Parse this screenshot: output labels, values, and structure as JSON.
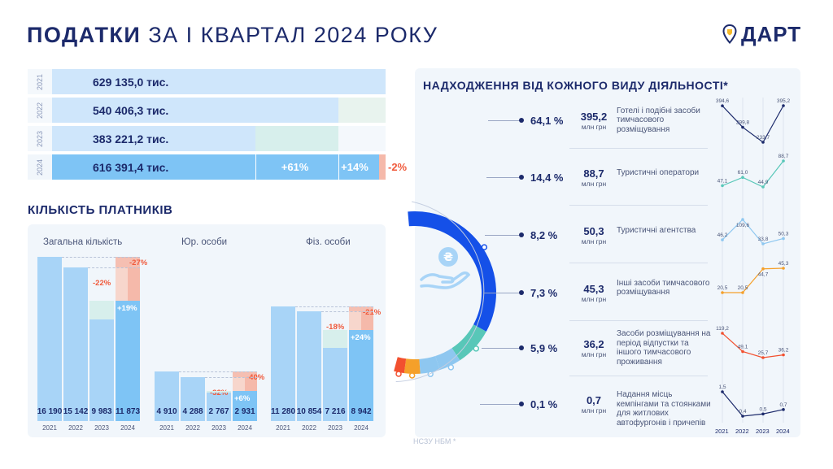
{
  "header": {
    "title_bold": "ПОДАТКИ",
    "title_rest": " ЗА І КВАРТАЛ 2024 РОКУ",
    "logo_text": "ДАРТ",
    "logo_icon": "map-pin-shield-icon"
  },
  "colors": {
    "navy": "#1c2a6b",
    "light_blue": "#a8d4f7",
    "mid_blue": "#7ec4f5",
    "pale_blue": "#cfe6fb",
    "mint": "#d7efec",
    "red": "#f05a3c",
    "light_red": "#f5b9aa",
    "ring_blue": "#1550e8",
    "ring_teal": "#58c7b8",
    "ring_sky": "#8ec7f0",
    "ring_orange": "#f5a02a",
    "ring_red": "#f2502f"
  },
  "revenue": {
    "rows": [
      {
        "year": "2021",
        "value": "629 135,0  тис.",
        "amount": 629135.0
      },
      {
        "year": "2022",
        "value": "540 406,3  тис.",
        "amount": 540406.3
      },
      {
        "year": "2023",
        "value": "383 221,2  тис.",
        "amount": 383221.2
      },
      {
        "year": "2024",
        "value": "616 391,4 тис.",
        "amount": 616391.4
      }
    ],
    "changes": {
      "vs_2023": "+61%",
      "vs_2022": "+14%",
      "vs_2021": "-2%"
    }
  },
  "payers": {
    "title": "КІЛЬКІСТЬ ПЛАТНИКІВ",
    "chart_data": {
      "type": "bar",
      "categories": [
        "2021",
        "2022",
        "2023",
        "2024"
      ],
      "groups": [
        {
          "name": "Загальна кількість",
          "values": [
            16190,
            15142,
            9983,
            11873
          ],
          "labels": [
            "16 190",
            "15 142",
            "9 983",
            "11 873"
          ],
          "change_vs_2023": "+19%",
          "change_vs_2022": "-22%",
          "change_vs_2021": "-27%"
        },
        {
          "name": "Юр. особи",
          "values": [
            4910,
            4288,
            2767,
            2931
          ],
          "labels": [
            "4 910",
            "4 288",
            "2 767",
            "2 931"
          ],
          "change_vs_2023": "+6%",
          "change_vs_2022": "-32%",
          "change_vs_2021": "-40%"
        },
        {
          "name": "Фіз. особи",
          "values": [
            11280,
            10854,
            7216,
            8942
          ],
          "labels": [
            "11 280",
            "10 854",
            "7 216",
            "8 942"
          ],
          "change_vs_2023": "+24%",
          "change_vs_2022": "-18%",
          "change_vs_2021": "-21%"
        }
      ]
    }
  },
  "activities": {
    "title": "НАДХОДЖЕННЯ ВІД КОЖНОГО ВИДУ ДІЯЛЬНОСТІ*",
    "unit": "млн грн",
    "footnote": "НСЗУ НБМ *",
    "center_icon": "hand-hryvnia-coin-icon",
    "chart_data": {
      "type": "line",
      "x": [
        "2021",
        "2022",
        "2023",
        "2024"
      ],
      "series": [
        {
          "name": "Готелі і подібні засоби тимчасового розміщування",
          "share": "64,1 %",
          "amount": "395,2",
          "share_value": 64.1,
          "values": [
            394.6,
            299.8,
            233.7,
            395.2
          ],
          "labels": [
            "394,6",
            "299,8",
            "233,7",
            "395,2"
          ],
          "color": "#1c2a6b"
        },
        {
          "name": "Туристичні оператори",
          "share": "14,4 %",
          "amount": "88,7",
          "share_value": 14.4,
          "values": [
            47.1,
            61.0,
            44.9,
            88.7
          ],
          "labels": [
            "47,1",
            "61,0",
            "44,9",
            "88,7"
          ],
          "color": "#58c7b8"
        },
        {
          "name": "Туристичні агентства",
          "share": "8,2 %",
          "amount": "50,3",
          "share_value": 8.2,
          "values": [
            46.2,
            109.6,
            33.8,
            50.3
          ],
          "labels": [
            "46,2",
            "109,6",
            "33,8",
            "50,3"
          ],
          "color": "#8ec7f0"
        },
        {
          "name": "Інші засоби тимчасового розміщування",
          "share": "7,3 %",
          "amount": "45,3",
          "share_value": 7.3,
          "values": [
            20.5,
            20.5,
            44.7,
            45.3
          ],
          "labels": [
            "20,5",
            "20,5",
            "44,7",
            "45,3"
          ],
          "color": "#f5a02a"
        },
        {
          "name": "Засоби розміщування на період відпустки та іншого тимчасового проживання",
          "share": "5,9 %",
          "amount": "36,2",
          "share_value": 5.9,
          "values": [
            119.2,
            49.1,
            25.7,
            36.2
          ],
          "labels": [
            "119,2",
            "49,1",
            "25,7",
            "36,2"
          ],
          "color": "#f2502f"
        },
        {
          "name": "Надання місць кемпінгами та стоянками для житлових автофургонів і причепів",
          "share": "0,1 %",
          "amount": "0,7",
          "share_value": 0.1,
          "values": [
            1.5,
            0.4,
            0.5,
            0.7
          ],
          "labels": [
            "1,5",
            "0,4",
            "0,5",
            "0,7"
          ],
          "color": "#1c2a6b"
        }
      ]
    }
  }
}
